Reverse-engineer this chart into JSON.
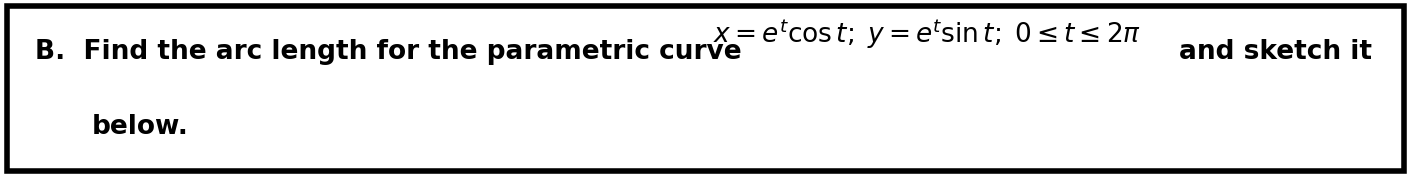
{
  "background_color": "#ffffff",
  "border_color": "#000000",
  "border_linewidth": 4,
  "text_color": "#000000",
  "label_text": "B.  Find the arc length for the parametric curve",
  "math_text": "$x = e^{t}\\mathrm{cos}\\,t;\\; y = e^{t}\\mathrm{sin}\\,t;\\; 0 \\leq t \\leq 2\\pi$",
  "suffix_text": "and sketch it",
  "second_line": "below.",
  "label_fontsize": 19,
  "math_fontsize": 19,
  "suffix_fontsize": 19,
  "second_fontsize": 19,
  "fig_width": 14.12,
  "fig_height": 1.78
}
